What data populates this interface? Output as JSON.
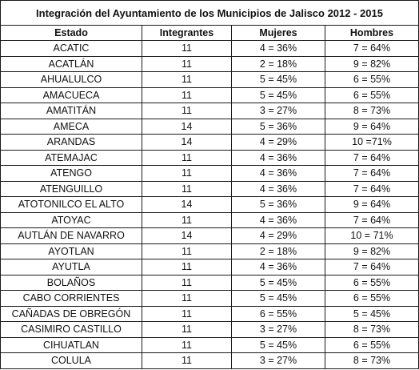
{
  "title": "Integración del Ayuntamiento de los Municipios de Jalisco 2012 - 2015",
  "headers": [
    "Estado",
    "Integrantes",
    "Mujeres",
    "Hombres"
  ],
  "rows": [
    [
      "ACATIC",
      "11",
      "4 = 36%",
      "7 = 64%"
    ],
    [
      "ACATLÁN",
      "11",
      "2 = 18%",
      "9 = 82%"
    ],
    [
      "AHUALULCO",
      "11",
      "5 = 45%",
      "6 = 55%"
    ],
    [
      "AMACUECA",
      "11",
      "5 = 45%",
      "6 = 55%"
    ],
    [
      "AMATITÁN",
      "11",
      "3 = 27%",
      "8 = 73%"
    ],
    [
      "AMECA",
      "14",
      "5 = 36%",
      "9 = 64%"
    ],
    [
      "ARANDAS",
      "14",
      "4 = 29%",
      "10 =71%"
    ],
    [
      "ATEMAJAC",
      "11",
      "4 = 36%",
      "7 = 64%"
    ],
    [
      "ATENGO",
      "11",
      "4 = 36%",
      "7 =  64%"
    ],
    [
      "ATENGUILLO",
      "11",
      "4 = 36%",
      "7 = 64%"
    ],
    [
      "ATOTONILCO EL ALTO",
      "14",
      "5 = 36%",
      "9 = 64%"
    ],
    [
      "ATOYAC",
      "11",
      "4 = 36%",
      "7 = 64%"
    ],
    [
      "AUTLÁN DE NAVARRO",
      "14",
      "4 = 29%",
      "10 = 71%"
    ],
    [
      "AYOTLAN",
      "11",
      "2 = 18%",
      "9 = 82%"
    ],
    [
      "AYUTLA",
      "11",
      "4 = 36%",
      "7 = 64%"
    ],
    [
      "BOLAÑOS",
      "11",
      "5 = 45%",
      "6 = 55%"
    ],
    [
      "CABO CORRIENTES",
      "11",
      "5 = 45%",
      "6 = 55%"
    ],
    [
      "CAÑADAS DE OBREGÓN",
      "11",
      "6 = 55%",
      "5 = 45%"
    ],
    [
      "CASIMIRO CASTILLO",
      "11",
      "3 = 27%",
      "8 = 73%"
    ],
    [
      "CIHUATLAN",
      "11",
      "5 = 45%",
      "6 = 55%"
    ],
    [
      "COLULA",
      "11",
      "3 = 27%",
      "8 = 73%"
    ]
  ]
}
